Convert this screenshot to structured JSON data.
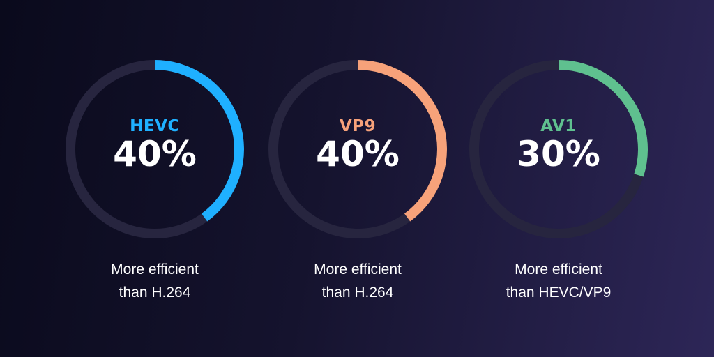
{
  "chart_data": {
    "type": "donut",
    "max": 100,
    "track_color": "#27253f",
    "rings": [
      {
        "name": "HEVC",
        "value": 40,
        "value_label": "40%",
        "color": "#1fb0ff",
        "caption_line1": "More efficient",
        "caption_line2": "than H.264"
      },
      {
        "name": "VP9",
        "value": 40,
        "value_label": "40%",
        "color": "#f7a27a",
        "caption_line1": "More efficient",
        "caption_line2": "than H.264"
      },
      {
        "name": "AV1",
        "value": 30,
        "value_label": "30%",
        "color": "#5fc08f",
        "caption_line1": "More efficient",
        "caption_line2": "than HEVC/VP9"
      }
    ]
  }
}
